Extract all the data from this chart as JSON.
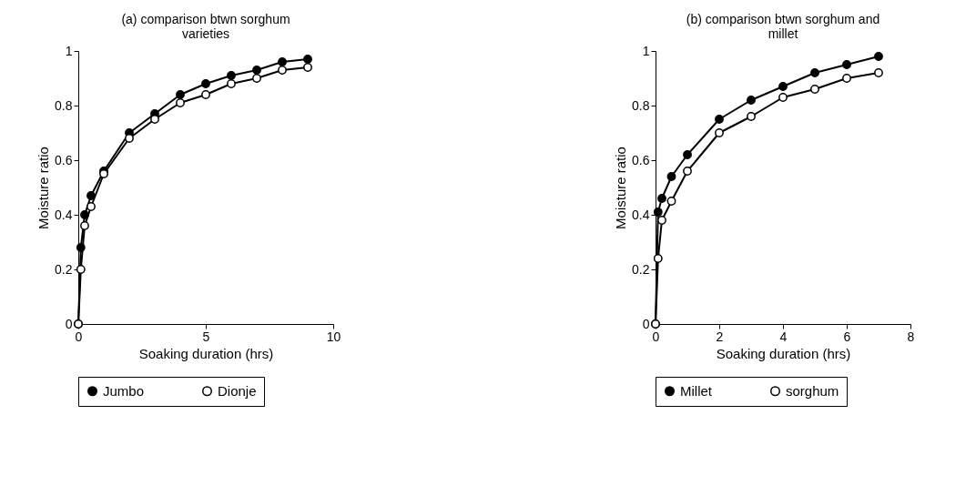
{
  "chart_data": [
    {
      "type": "line",
      "title": [
        "(a) comparison btwn sorghum",
        "varieties"
      ],
      "xlabel": "Soaking duration (hrs)",
      "ylabel": "Moisture ratio",
      "x": [
        0,
        0.1,
        0.25,
        0.5,
        1,
        2,
        3,
        4,
        5,
        6,
        7,
        8,
        9
      ],
      "series": [
        {
          "name": "Jumbo",
          "color": "#000000",
          "values": [
            0,
            0.28,
            0.4,
            0.47,
            0.56,
            0.7,
            0.77,
            0.84,
            0.88,
            0.91,
            0.93,
            0.96,
            0.97
          ]
        },
        {
          "name": "Dionje",
          "color": "#ffffff",
          "values": [
            0,
            0.2,
            0.36,
            0.43,
            0.55,
            0.68,
            0.75,
            0.81,
            0.84,
            0.88,
            0.9,
            0.93,
            0.94
          ]
        }
      ],
      "xlim": [
        0,
        10
      ],
      "xticks": [
        0,
        5,
        10
      ],
      "ylim": [
        0,
        1
      ],
      "yticks": [
        0,
        0.2,
        0.4,
        0.6,
        0.8,
        1
      ],
      "marker": "circle",
      "line_style": "solid",
      "grid": false,
      "legend": "bottom"
    },
    {
      "type": "line",
      "title": [
        "(b) comparison btwn sorghum and",
        "millet"
      ],
      "xlabel": "Soaking duration (hrs)",
      "ylabel": "Moisture ratio",
      "x": [
        0,
        0.08,
        0.2,
        0.5,
        1,
        2,
        3,
        4,
        5,
        6,
        7
      ],
      "series": [
        {
          "name": "Millet",
          "color": "#000000",
          "values": [
            0,
            0.41,
            0.46,
            0.54,
            0.62,
            0.75,
            0.82,
            0.87,
            0.92,
            0.95,
            0.98
          ]
        },
        {
          "name": "sorghum",
          "color": "#ffffff",
          "values": [
            0,
            0.24,
            0.38,
            0.45,
            0.56,
            0.7,
            0.76,
            0.83,
            0.86,
            0.9,
            0.92
          ]
        }
      ],
      "xlim": [
        0,
        8
      ],
      "xticks": [
        0,
        2,
        4,
        6,
        8
      ],
      "ylim": [
        0,
        1
      ],
      "yticks": [
        0,
        0.2,
        0.4,
        0.6,
        0.8,
        1
      ],
      "marker": "circle",
      "line_style": "solid",
      "grid": false,
      "legend": "bottom"
    }
  ]
}
